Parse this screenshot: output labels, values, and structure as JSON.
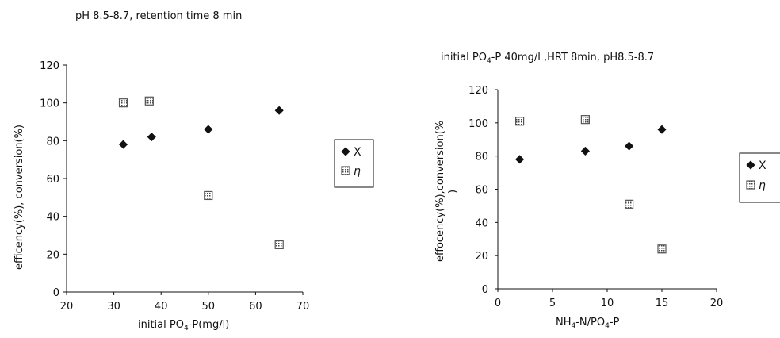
{
  "chart_data": [
    {
      "type": "scatter",
      "title": "pH  8.5-8.7,  retention  time  8  min",
      "xlabel": {
        "main": "initial PO",
        "sub": "4",
        "tail": "-P(mg/l)"
      },
      "ylabel": "efficency(%), conversion(%)",
      "xlim": [
        20,
        70
      ],
      "ylim": [
        0,
        120
      ],
      "xticks": [
        "20",
        "30",
        "40",
        "50",
        "60",
        "70"
      ],
      "yticks": [
        "0",
        "20",
        "40",
        "60",
        "80",
        "100",
        "120"
      ],
      "grid": false,
      "legend": "right",
      "series": [
        {
          "name": "X",
          "marker": "diamond",
          "color": "#111111",
          "points": [
            [
              32,
              78
            ],
            [
              38,
              82
            ],
            [
              50,
              86
            ],
            [
              65,
              96
            ]
          ]
        },
        {
          "name": "η",
          "marker": "hatched-square",
          "color": "#555555",
          "points": [
            [
              32,
              100
            ],
            [
              37.5,
              101
            ],
            [
              50,
              51
            ],
            [
              65,
              25
            ]
          ]
        }
      ]
    },
    {
      "type": "scatter",
      "title": {
        "main": "initial PO",
        "sub": "4",
        "tail": "-P 40mg/l ,HRT 8min, pH8.5-8.7"
      },
      "xlabel": {
        "p1": "NH",
        "s1": "4",
        "p2": "-N/PO",
        "s2": "4",
        "p3": "-P"
      },
      "ylabel": "effocency(%),conversion(%",
      "ylabel_wrap": ")",
      "xlim": [
        0,
        20
      ],
      "ylim": [
        0,
        120
      ],
      "xticks": [
        "0",
        "5",
        "10",
        "15",
        "20"
      ],
      "yticks": [
        "0",
        "20",
        "40",
        "60",
        "80",
        "100",
        "120"
      ],
      "grid": false,
      "legend": "right",
      "series": [
        {
          "name": "X",
          "marker": "diamond",
          "color": "#111111",
          "points": [
            [
              2,
              78
            ],
            [
              8,
              83
            ],
            [
              12,
              86
            ],
            [
              15,
              96
            ]
          ]
        },
        {
          "name": "η",
          "marker": "hatched-square",
          "color": "#555555",
          "points": [
            [
              2,
              101
            ],
            [
              8,
              102
            ],
            [
              12,
              51
            ],
            [
              15,
              24
            ]
          ]
        }
      ]
    }
  ]
}
